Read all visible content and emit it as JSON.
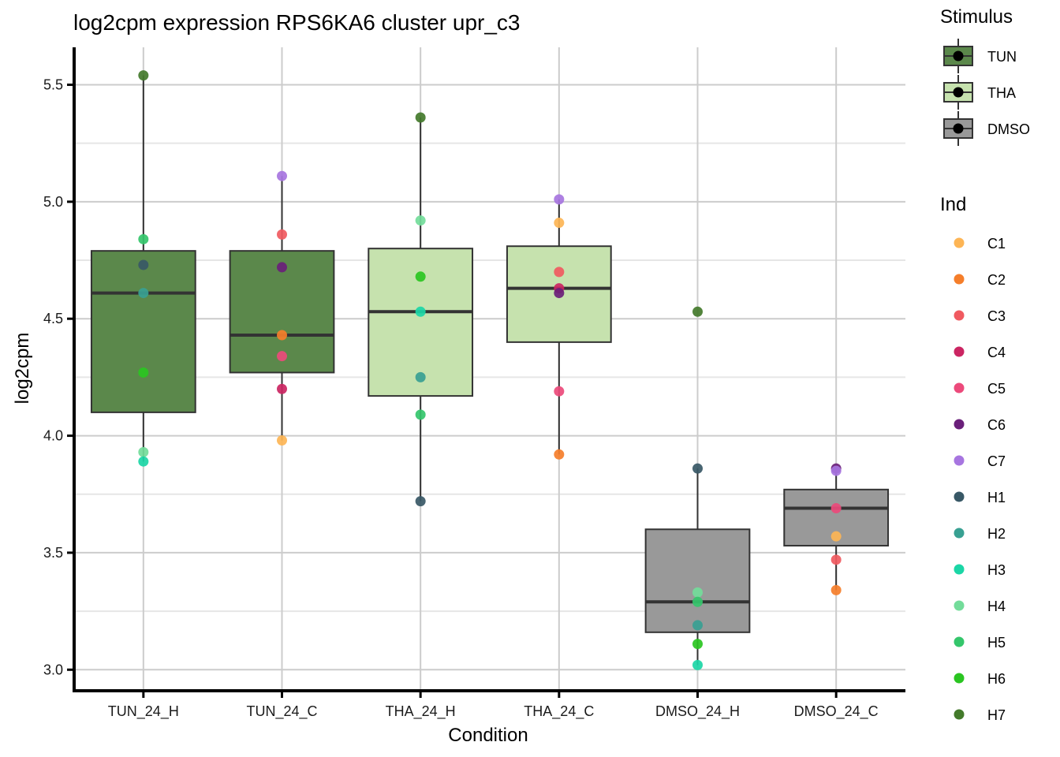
{
  "chart_data": {
    "type": "box",
    "title": "log2cpm expression RPS6KA6 cluster upr_c3",
    "xlabel": "Condition",
    "ylabel": "log2cpm",
    "ylim": [
      2.91,
      5.66
    ],
    "yticks": [
      3.0,
      3.5,
      4.0,
      4.5,
      5.0,
      5.5
    ],
    "ytick_labels": [
      "3.0",
      "3.5",
      "4.0",
      "4.5",
      "5.0",
      "5.5"
    ],
    "minor_yticks": [
      3.25,
      3.75,
      4.25,
      4.75,
      5.25
    ],
    "grid": true,
    "categories": [
      "TUN_24_H",
      "TUN_24_C",
      "THA_24_H",
      "THA_24_C",
      "DMSO_24_H",
      "DMSO_24_C"
    ],
    "boxes": [
      {
        "category": "TUN_24_H",
        "stimulus": "TUN",
        "whisker_low": 3.89,
        "q1": 4.1,
        "median": 4.61,
        "q3": 4.79,
        "whisker_high": 5.54
      },
      {
        "category": "TUN_24_C",
        "stimulus": "TUN",
        "whisker_low": 3.98,
        "q1": 4.27,
        "median": 4.43,
        "q3": 4.79,
        "whisker_high": 5.11
      },
      {
        "category": "THA_24_H",
        "stimulus": "THA",
        "whisker_low": 3.72,
        "q1": 4.17,
        "median": 4.53,
        "q3": 4.8,
        "whisker_high": 5.36
      },
      {
        "category": "THA_24_C",
        "stimulus": "THA",
        "whisker_low": 3.92,
        "q1": 4.4,
        "median": 4.63,
        "q3": 4.81,
        "whisker_high": 5.01
      },
      {
        "category": "DMSO_24_H",
        "stimulus": "DMSO",
        "whisker_low": 3.02,
        "q1": 3.16,
        "median": 3.29,
        "q3": 3.6,
        "whisker_high": 3.86
      },
      {
        "category": "DMSO_24_C",
        "stimulus": "DMSO",
        "whisker_low": 3.34,
        "q1": 3.53,
        "median": 3.69,
        "q3": 3.77,
        "whisker_high": 3.86
      }
    ],
    "points": [
      {
        "category": "TUN_24_H",
        "ind": "H7",
        "value": 5.54
      },
      {
        "category": "TUN_24_H",
        "ind": "H5",
        "value": 4.84
      },
      {
        "category": "TUN_24_H",
        "ind": "H1",
        "value": 4.73
      },
      {
        "category": "TUN_24_H",
        "ind": "H2",
        "value": 4.61
      },
      {
        "category": "TUN_24_H",
        "ind": "H6",
        "value": 4.27
      },
      {
        "category": "TUN_24_H",
        "ind": "H4",
        "value": 3.93
      },
      {
        "category": "TUN_24_H",
        "ind": "H3",
        "value": 3.89
      },
      {
        "category": "TUN_24_C",
        "ind": "C7",
        "value": 5.11
      },
      {
        "category": "TUN_24_C",
        "ind": "C3",
        "value": 4.86
      },
      {
        "category": "TUN_24_C",
        "ind": "C6",
        "value": 4.72
      },
      {
        "category": "TUN_24_C",
        "ind": "C2",
        "value": 4.43
      },
      {
        "category": "TUN_24_C",
        "ind": "C5",
        "value": 4.34
      },
      {
        "category": "TUN_24_C",
        "ind": "C4",
        "value": 4.2
      },
      {
        "category": "TUN_24_C",
        "ind": "C1",
        "value": 3.98
      },
      {
        "category": "THA_24_H",
        "ind": "H7",
        "value": 5.36
      },
      {
        "category": "THA_24_H",
        "ind": "H4",
        "value": 4.92
      },
      {
        "category": "THA_24_H",
        "ind": "H6",
        "value": 4.68
      },
      {
        "category": "THA_24_H",
        "ind": "H3",
        "value": 4.53
      },
      {
        "category": "THA_24_H",
        "ind": "H2",
        "value": 4.25
      },
      {
        "category": "THA_24_H",
        "ind": "H5",
        "value": 4.09
      },
      {
        "category": "THA_24_H",
        "ind": "H1",
        "value": 3.72
      },
      {
        "category": "THA_24_C",
        "ind": "C7",
        "value": 5.01
      },
      {
        "category": "THA_24_C",
        "ind": "C1",
        "value": 4.91
      },
      {
        "category": "THA_24_C",
        "ind": "C3",
        "value": 4.7
      },
      {
        "category": "THA_24_C",
        "ind": "C4",
        "value": 4.63
      },
      {
        "category": "THA_24_C",
        "ind": "C6",
        "value": 4.61
      },
      {
        "category": "THA_24_C",
        "ind": "C5",
        "value": 4.19
      },
      {
        "category": "THA_24_C",
        "ind": "C2",
        "value": 3.92
      },
      {
        "category": "DMSO_24_H",
        "ind": "H7",
        "value": 4.53
      },
      {
        "category": "DMSO_24_H",
        "ind": "H1",
        "value": 3.86
      },
      {
        "category": "DMSO_24_H",
        "ind": "H4",
        "value": 3.33
      },
      {
        "category": "DMSO_24_H",
        "ind": "H5",
        "value": 3.29
      },
      {
        "category": "DMSO_24_H",
        "ind": "H2",
        "value": 3.19
      },
      {
        "category": "DMSO_24_H",
        "ind": "H6",
        "value": 3.11
      },
      {
        "category": "DMSO_24_H",
        "ind": "H3",
        "value": 3.02
      },
      {
        "category": "DMSO_24_C",
        "ind": "C6",
        "value": 3.86
      },
      {
        "category": "DMSO_24_C",
        "ind": "C7",
        "value": 3.85
      },
      {
        "category": "DMSO_24_C",
        "ind": "C5",
        "value": 3.69
      },
      {
        "category": "DMSO_24_C",
        "ind": "C1",
        "value": 3.57
      },
      {
        "category": "DMSO_24_C",
        "ind": "C3",
        "value": 3.47
      },
      {
        "category": "DMSO_24_C",
        "ind": "C2",
        "value": 3.34
      }
    ],
    "legends": [
      {
        "title": "Stimulus",
        "type": "fill",
        "entries": [
          {
            "label": "TUN",
            "color": "#5b884b"
          },
          {
            "label": "THA",
            "color": "#c6e2ae"
          },
          {
            "label": "DMSO",
            "color": "#999999"
          }
        ]
      },
      {
        "title": "Ind",
        "type": "point",
        "entries": [
          {
            "label": "C1",
            "color": "#fdb555"
          },
          {
            "label": "C2",
            "color": "#f57e2a"
          },
          {
            "label": "C3",
            "color": "#f05a60"
          },
          {
            "label": "C4",
            "color": "#cb2562"
          },
          {
            "label": "C5",
            "color": "#ec4a7b"
          },
          {
            "label": "C6",
            "color": "#6a1f7a"
          },
          {
            "label": "C7",
            "color": "#a775e0"
          },
          {
            "label": "H1",
            "color": "#385866"
          },
          {
            "label": "H2",
            "color": "#38a092"
          },
          {
            "label": "H3",
            "color": "#1bd6a6"
          },
          {
            "label": "H4",
            "color": "#73dc9a"
          },
          {
            "label": "H5",
            "color": "#34c66b"
          },
          {
            "label": "H6",
            "color": "#2ac521"
          },
          {
            "label": "H7",
            "color": "#437a2b"
          }
        ]
      }
    ],
    "legend_position": "right"
  }
}
